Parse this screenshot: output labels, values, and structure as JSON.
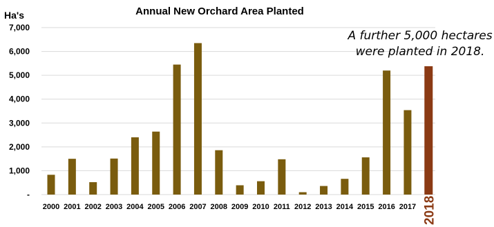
{
  "chart_data": {
    "type": "bar",
    "title": "Annual New Orchard Area Planted",
    "ylabel": "Ha's",
    "xlabel": "",
    "ylim": [
      0,
      7000
    ],
    "yticks": [
      0,
      1000,
      2000,
      3000,
      4000,
      5000,
      6000,
      7000
    ],
    "ytick_labels": [
      "-",
      "1,000",
      "2,000",
      "3,000",
      "4,000",
      "5,000",
      "6,000",
      "7,000"
    ],
    "grid": true,
    "categories": [
      "2000",
      "2001",
      "2002",
      "2003",
      "2004",
      "2005",
      "2006",
      "2007",
      "2008",
      "2009",
      "2010",
      "2011",
      "2012",
      "2013",
      "2014",
      "2015",
      "2016",
      "2017",
      "2018"
    ],
    "values": [
      830,
      1500,
      520,
      1510,
      2400,
      2640,
      5450,
      6350,
      1860,
      390,
      560,
      1480,
      100,
      360,
      660,
      1560,
      5200,
      3540,
      5380
    ],
    "highlight_index": 18,
    "colors": {
      "bar": "#7A5C0E",
      "highlight": "#8B3A14",
      "grid": "#d9d9d9"
    },
    "annotation": {
      "line1": "A further 5,000 hectares",
      "line2": "were planted in 2018."
    }
  }
}
